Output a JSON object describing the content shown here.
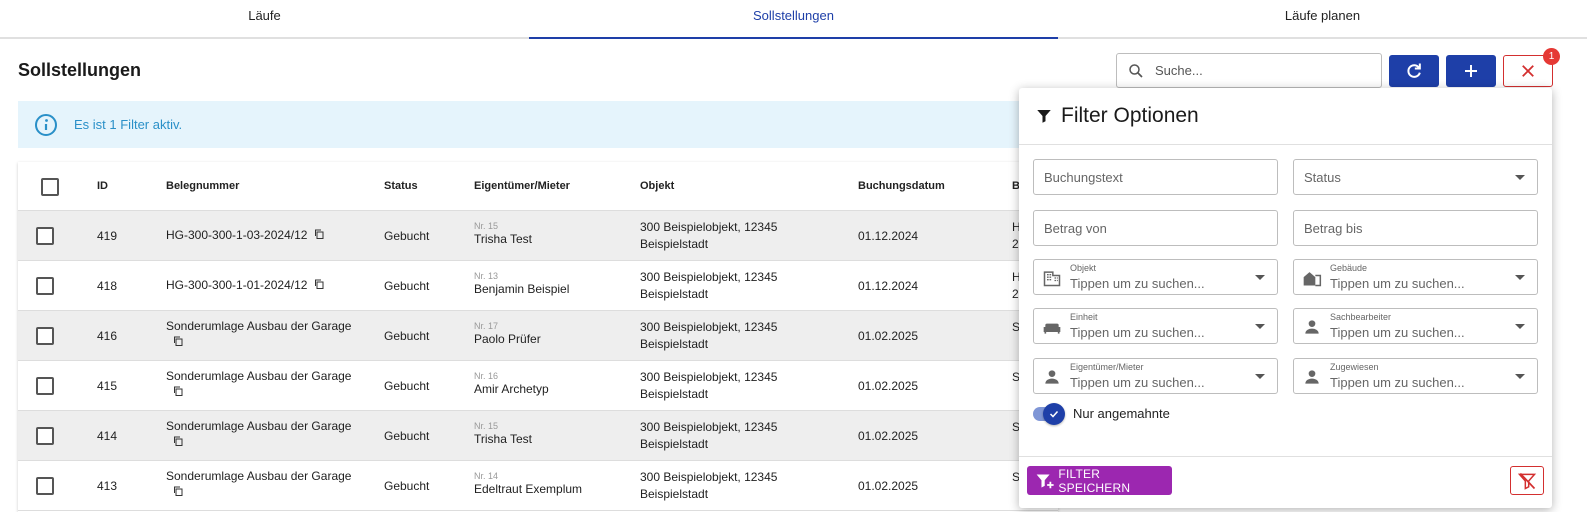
{
  "tabs": [
    {
      "label": "Läufe"
    },
    {
      "label": "Sollstellungen"
    },
    {
      "label": "Läufe planen"
    }
  ],
  "page_title": "Sollstellungen",
  "search": {
    "placeholder": "Suche..."
  },
  "filter_badge": "1",
  "info_banner": "Es ist 1 Filter aktiv.",
  "table": {
    "headers": {
      "id": "ID",
      "belegnummer": "Belegnummer",
      "status": "Status",
      "eigentuemer": "Eigentümer/Mieter",
      "objekt": "Objekt",
      "buchungsdatum": "Buchungsdatum",
      "next": "B"
    },
    "rows": [
      {
        "id": "419",
        "beleg": "HG-300-300-1-03-2024/12",
        "status": "Gebucht",
        "nr": "Nr. 15",
        "name": "Trisha Test",
        "objekt1": "300 Beispielobjekt, 12345",
        "objekt2": "Beispielstadt",
        "datum": "01.12.2024",
        "next1": "H",
        "next2": "2"
      },
      {
        "id": "418",
        "beleg": "HG-300-300-1-01-2024/12",
        "status": "Gebucht",
        "nr": "Nr. 13",
        "name": "Benjamin Beispiel",
        "objekt1": "300 Beispielobjekt, 12345",
        "objekt2": "Beispielstadt",
        "datum": "01.12.2024",
        "next1": "H",
        "next2": "2"
      },
      {
        "id": "416",
        "beleg": "Sonderumlage Ausbau der Garage",
        "status": "Gebucht",
        "nr": "Nr. 17",
        "name": "Paolo Prüfer",
        "objekt1": "300 Beispielobjekt, 12345",
        "objekt2": "Beispielstadt",
        "datum": "01.02.2025",
        "next1": "S",
        "next2": ""
      },
      {
        "id": "415",
        "beleg": "Sonderumlage Ausbau der Garage",
        "status": "Gebucht",
        "nr": "Nr. 16",
        "name": "Amir Archetyp",
        "objekt1": "300 Beispielobjekt, 12345",
        "objekt2": "Beispielstadt",
        "datum": "01.02.2025",
        "next1": "S",
        "next2": ""
      },
      {
        "id": "414",
        "beleg": "Sonderumlage Ausbau der Garage",
        "status": "Gebucht",
        "nr": "Nr. 15",
        "name": "Trisha Test",
        "objekt1": "300 Beispielobjekt, 12345",
        "objekt2": "Beispielstadt",
        "datum": "01.02.2025",
        "next1": "S",
        "next2": ""
      },
      {
        "id": "413",
        "beleg": "Sonderumlage Ausbau der Garage",
        "status": "Gebucht",
        "nr": "Nr. 14",
        "name": "Edeltraut Exemplum",
        "objekt1": "300 Beispielobjekt, 12345",
        "objekt2": "Beispielstadt",
        "datum": "01.02.2025",
        "next1": "S",
        "next2": ""
      }
    ]
  },
  "filter_panel": {
    "title": "Filter Optionen",
    "buchungstext": "Buchungstext",
    "status": "Status",
    "betrag_von": "Betrag von",
    "betrag_bis": "Betrag bis",
    "objekt_label": "Objekt",
    "gebaeude_label": "Gebäude",
    "einheit_label": "Einheit",
    "sachbearbeiter_label": "Sachbearbeiter",
    "eigentuemer_label": "Eigentümer/Mieter",
    "zugewiesen_label": "Zugewiesen",
    "autocomplete_placeholder": "Tippen um zu suchen...",
    "toggle_label": "Nur angemahnte",
    "save_button": "FILTER SPEICHERN"
  },
  "colors": {
    "primary": "#1e3fa8",
    "danger": "#d32f2f",
    "save": "#9c27b0",
    "info_bg": "#e5f4fc",
    "info_text": "#2a90c8"
  }
}
